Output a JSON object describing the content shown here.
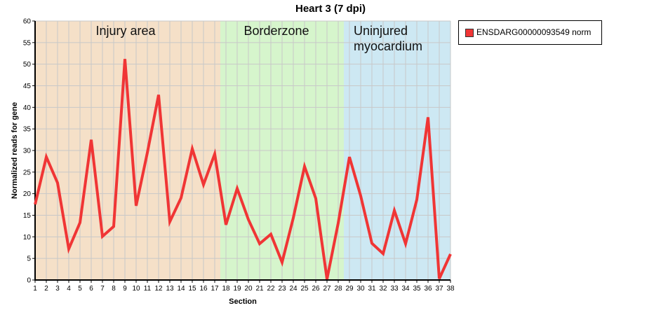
{
  "chart_data": {
    "type": "line",
    "title": "Heart 3 (7 dpi)",
    "xlabel": "Section",
    "ylabel": "Normalized reads for gene",
    "ylim": [
      0,
      60
    ],
    "y_ticks": [
      0,
      5,
      10,
      15,
      20,
      25,
      30,
      35,
      40,
      45,
      50,
      55,
      60
    ],
    "x": [
      1,
      2,
      3,
      4,
      5,
      6,
      7,
      8,
      9,
      10,
      11,
      12,
      13,
      14,
      15,
      16,
      17,
      18,
      19,
      20,
      21,
      22,
      23,
      24,
      25,
      26,
      27,
      28,
      29,
      30,
      31,
      32,
      33,
      34,
      35,
      36,
      37,
      38
    ],
    "grid": true,
    "legend_position": "right",
    "regions": [
      {
        "label": "Injury area",
        "from": 1,
        "to": 17.5,
        "color": "#f5e0c8"
      },
      {
        "label": "Borderzone",
        "from": 17.5,
        "to": 28.5,
        "color": "#d6f5cc"
      },
      {
        "label": "Uninjured myocardium",
        "label_lines": [
          "Uninjured",
          "myocardium"
        ],
        "from": 28.5,
        "to": 38,
        "color": "#cde8f3"
      }
    ],
    "series": [
      {
        "name": "ENSDARG00000093549 norm",
        "color": "#f03535",
        "values": [
          17.5,
          28.5,
          22.5,
          7.2,
          13.3,
          32.5,
          10.1,
          12.4,
          51.2,
          17.2,
          29.5,
          42.9,
          13.5,
          19.0,
          30.4,
          22.1,
          29.2,
          12.8,
          21.2,
          14.0,
          8.4,
          10.6,
          4.1,
          14.4,
          26.3,
          18.9,
          0.2,
          13.2,
          28.5,
          19.5,
          8.5,
          6.1,
          16.1,
          8.4,
          18.6,
          37.7,
          0.3,
          6.0
        ]
      }
    ]
  }
}
